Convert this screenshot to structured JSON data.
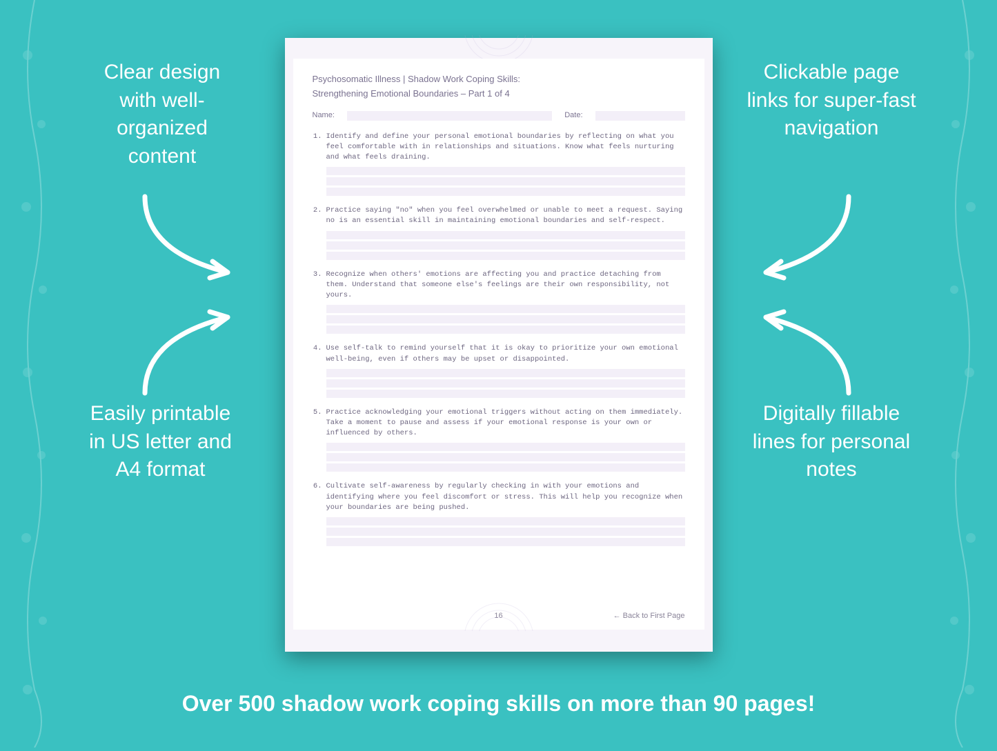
{
  "background_color": "#3ac1c1",
  "callouts": {
    "top_left": "Clear design with well-organized content",
    "top_right": "Clickable page links for super-fast navigation",
    "bottom_left": "Easily printable in US letter and A4 format",
    "bottom_right": "Digitally fillable lines for personal notes"
  },
  "callout_style": {
    "color": "#ffffff",
    "font_size": 30,
    "font_weight": 400
  },
  "arrows": {
    "stroke": "#ffffff",
    "stroke_width": 7
  },
  "bottom_banner": "Over 500 shadow work coping skills on more than 90 pages!",
  "bottom_banner_style": {
    "color": "#ffffff",
    "font_size": 32,
    "font_weight": 600
  },
  "document": {
    "page_bg": "#f7f4fa",
    "inner_bg": "#ffffff",
    "title_line1": "Psychosomatic Illness | Shadow Work Coping Skills:",
    "title_line2": "Strengthening Emotional Boundaries  – Part 1 of 4",
    "title_color": "#7a7290",
    "name_label": "Name:",
    "date_label": "Date:",
    "field_bg": "#f3eff8",
    "question_font": "Courier New",
    "question_color": "#6d6680",
    "answer_line_bg": "#f3eff8",
    "answer_line_count": 3,
    "questions": [
      "Identify and define your personal emotional boundaries by reflecting on what you feel comfortable with in relationships and situations. Know what feels nurturing and what feels draining.",
      "Practice saying \"no\" when you feel overwhelmed or unable to meet a request. Saying no is an essential skill in maintaining emotional boundaries and self-respect.",
      "Recognize when others' emotions are affecting you and practice detaching from them. Understand that someone else's feelings are their own responsibility, not yours.",
      "Use self-talk to remind yourself that it is okay to prioritize your own emotional well-being, even if others may be upset or disappointed.",
      "Practice acknowledging your emotional triggers without acting on them immediately. Take a moment to pause and assess if your emotional response is your own or influenced by others.",
      "Cultivate self-awareness by regularly checking in with your emotions and identifying where you feel discomfort or stress. This will help you recognize when your boundaries are being pushed."
    ],
    "page_number": "16",
    "back_link": "← Back to First Page"
  }
}
